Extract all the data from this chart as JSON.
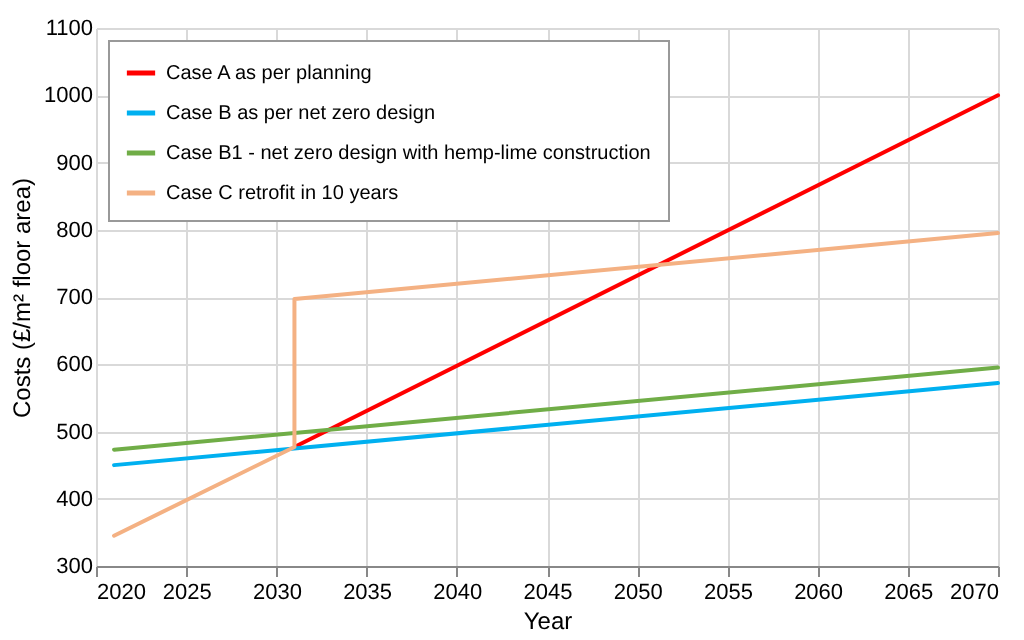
{
  "chart_data": {
    "type": "line",
    "xlabel": "Year",
    "ylabel": "Costs (£/m² floor area)",
    "xlim": [
      2020,
      2070
    ],
    "xticks": [
      2020,
      2025,
      2030,
      2035,
      2040,
      2045,
      2050,
      2055,
      2060,
      2065,
      2070
    ],
    "ylim": [
      300,
      1100
    ],
    "yticks": [
      300,
      400,
      500,
      600,
      700,
      800,
      900,
      1000,
      1100
    ],
    "grid": true,
    "legend": "top left",
    "marker": "none",
    "line_style": "solid",
    "series": [
      {
        "name": "Case A as per planning",
        "color": "#ff0000",
        "x": [
          2031,
          2070
        ],
        "values": [
          477,
          1000
        ]
      },
      {
        "name": "Case B as per net zero design",
        "color": "#00b0f0",
        "x": [
          2021,
          2070
        ],
        "values": [
          450,
          572
        ]
      },
      {
        "name": "Case B1 - net zero design with hemp-lime construction",
        "color": "#70ad47",
        "x": [
          2021,
          2070
        ],
        "values": [
          473,
          595
        ]
      },
      {
        "name": "Case C retrofit in 10 years",
        "color": "#f4b183",
        "x": [
          2021,
          2031,
          2031,
          2070
        ],
        "values": [
          345,
          477,
          697,
          795
        ]
      }
    ]
  }
}
